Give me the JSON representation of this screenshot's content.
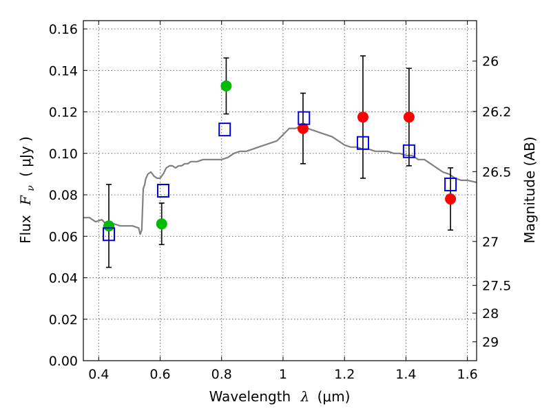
{
  "chart_data": {
    "type": "scatter",
    "title": "",
    "xlabel_text": "Wavelength",
    "xlabel_symbol": "λ",
    "xlabel_unit": "(μm)",
    "ylabel_text": "Flux",
    "ylabel_symbol": "F",
    "ylabel_subscript": "ν",
    "ylabel_unit": "( μJy )",
    "y2label": "Magnitude (AB)",
    "xlim": [
      0.35,
      1.63
    ],
    "ylim": [
      0.0,
      0.164
    ],
    "grid": true,
    "x_ticks": [
      0.4,
      0.6,
      0.8,
      1.0,
      1.2,
      1.4,
      1.6
    ],
    "x_tick_labels": [
      "0.4",
      "0.6",
      "0.8",
      "1",
      "1.2",
      "1.4",
      "1.6"
    ],
    "y_ticks": [
      0.0,
      0.02,
      0.04,
      0.06,
      0.08,
      0.1,
      0.12,
      0.14,
      0.16
    ],
    "y_tick_labels": [
      "0.00",
      "0.02",
      "0.04",
      "0.06",
      "0.08",
      "0.10",
      "0.12",
      "0.14",
      "0.16"
    ],
    "y2_ticks": [
      {
        "label": "26",
        "flux": 0.1445
      },
      {
        "label": "26.2",
        "flux": 0.1202
      },
      {
        "label": "26.5",
        "flux": 0.0912
      },
      {
        "label": "27",
        "flux": 0.0575
      },
      {
        "label": "27.5",
        "flux": 0.0363
      },
      {
        "label": "28",
        "flux": 0.0229
      },
      {
        "label": "29",
        "flux": 0.0091
      }
    ],
    "colors": {
      "sed_model": "#808080",
      "green_points": "#00bb00",
      "red_points": "#ff0000",
      "model_squares": "#0000dd",
      "error_bars": "#000000"
    },
    "series": [
      {
        "kind": "line",
        "x": [
          0.35,
          0.37,
          0.39,
          0.41,
          0.43,
          0.45,
          0.47,
          0.49,
          0.51,
          0.53,
          0.535,
          0.54,
          0.545,
          0.55,
          0.552,
          0.554,
          0.56,
          0.57,
          0.58,
          0.59,
          0.6,
          0.61,
          0.62,
          0.63,
          0.64,
          0.65,
          0.66,
          0.67,
          0.68,
          0.69,
          0.7,
          0.72,
          0.74,
          0.76,
          0.78,
          0.8,
          0.82,
          0.84,
          0.86,
          0.88,
          0.9,
          0.92,
          0.94,
          0.96,
          0.98,
          1.0,
          1.02,
          1.04,
          1.06,
          1.08,
          1.1,
          1.12,
          1.14,
          1.16,
          1.18,
          1.2,
          1.22,
          1.24,
          1.26,
          1.28,
          1.3,
          1.32,
          1.34,
          1.36,
          1.38,
          1.4,
          1.42,
          1.44,
          1.46,
          1.48,
          1.5,
          1.52,
          1.54,
          1.56,
          1.58,
          1.6,
          1.63
        ],
        "y": [
          0.069,
          0.069,
          0.067,
          0.068,
          0.065,
          0.066,
          0.065,
          0.065,
          0.065,
          0.064,
          0.061,
          0.063,
          0.083,
          0.085,
          0.087,
          0.088,
          0.09,
          0.091,
          0.089,
          0.088,
          0.088,
          0.09,
          0.093,
          0.094,
          0.094,
          0.093,
          0.094,
          0.094,
          0.095,
          0.095,
          0.096,
          0.096,
          0.097,
          0.097,
          0.097,
          0.097,
          0.098,
          0.1,
          0.101,
          0.101,
          0.102,
          0.103,
          0.104,
          0.105,
          0.106,
          0.109,
          0.112,
          0.112,
          0.113,
          0.112,
          0.111,
          0.11,
          0.109,
          0.108,
          0.106,
          0.104,
          0.103,
          0.103,
          0.102,
          0.102,
          0.101,
          0.101,
          0.101,
          0.1,
          0.1,
          0.099,
          0.099,
          0.097,
          0.097,
          0.095,
          0.093,
          0.091,
          0.09,
          0.088,
          0.087,
          0.087,
          0.086
        ]
      },
      {
        "kind": "points",
        "color_key": "green_points",
        "x": [
          0.433,
          0.605,
          0.815
        ],
        "y": [
          0.065,
          0.066,
          0.1325
        ],
        "yerr": [
          0.02,
          0.01,
          0.0135
        ]
      },
      {
        "kind": "points",
        "color_key": "red_points",
        "x": [
          1.065,
          1.26,
          1.41,
          1.545
        ],
        "y": [
          0.112,
          0.1175,
          0.1175,
          0.078
        ],
        "yerr": [
          0.017,
          0.0295,
          0.0235,
          0.015
        ]
      },
      {
        "kind": "squares",
        "color_key": "model_squares",
        "x": [
          0.433,
          0.61,
          0.81,
          1.068,
          1.26,
          1.41,
          1.545
        ],
        "y": [
          0.061,
          0.082,
          0.1115,
          0.117,
          0.105,
          0.101,
          0.085
        ]
      }
    ]
  }
}
